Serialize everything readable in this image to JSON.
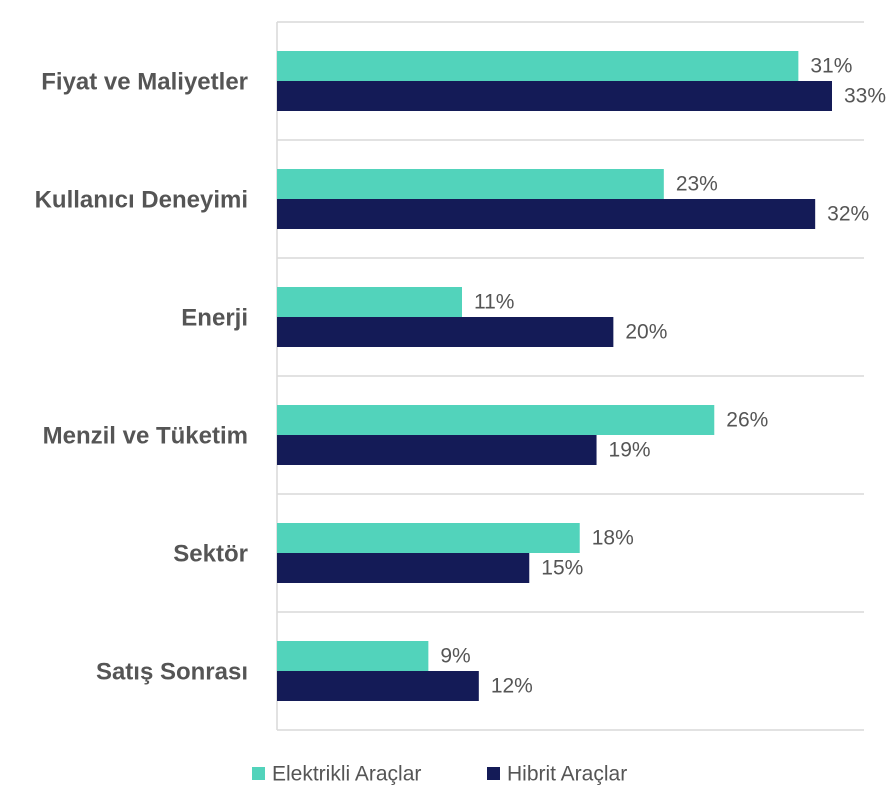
{
  "chart_data": {
    "type": "bar",
    "orientation": "horizontal",
    "categories": [
      "Fiyat ve Maliyetler",
      "Kullanıcı Deneyimi",
      "Enerji",
      "Menzil ve Tüketim",
      "Sektör",
      "Satış Sonrası"
    ],
    "series": [
      {
        "name": "Elektrikli Araçlar",
        "color": "#52d3bb",
        "values": [
          31,
          23,
          11,
          26,
          18,
          9
        ],
        "labels": [
          "31%",
          "23%",
          "11%",
          "26%",
          "18%",
          "9%"
        ]
      },
      {
        "name": "Hibrit Araçlar",
        "color": "#141b57",
        "values": [
          33,
          32,
          20,
          19,
          15,
          12
        ],
        "labels": [
          "33%",
          "32%",
          "20%",
          "19%",
          "15%",
          "12%"
        ]
      }
    ],
    "xlim": [
      0,
      35
    ],
    "grid": "horizontal separators",
    "legend_position": "bottom"
  }
}
